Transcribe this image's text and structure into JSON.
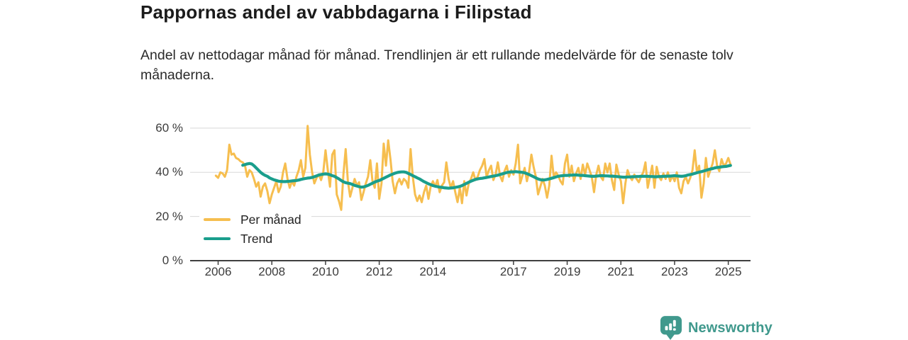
{
  "header": {
    "title": "Pappornas andel av vabbdagarna i Filipstad",
    "subtitle": "Andel av nettodagar månad för månad. Trendlinjen är ett rullande medelvärde för de senaste tolv månaderna."
  },
  "footer": {
    "brand": "Newsworthy",
    "brand_color": "#40998D"
  },
  "colors": {
    "per_month_line": "#F6BE4F",
    "trend_line": "#1A9E8C",
    "gridline": "#d8d8d8",
    "axis": "#3f3f3f",
    "text": "#2a2a2a"
  },
  "chart_data": {
    "type": "line",
    "title": "Pappornas andel av vabbdagarna i Filipstad",
    "subtitle": "Andel av nettodagar månad för månad. Trendlinjen är ett rullande medelvärde för de senaste tolv månaderna.",
    "xlabel": "",
    "ylabel": "",
    "unit": "%",
    "ylim": [
      0,
      65
    ],
    "y_tick_values": [
      0,
      20,
      40,
      60
    ],
    "y_tick_labels": [
      "0 %",
      "20 %",
      "40 %",
      "60 %"
    ],
    "x_ticks": [
      2006,
      2008,
      2010,
      2012,
      2014,
      2017,
      2019,
      2021,
      2023,
      2025
    ],
    "grid": "horizontal",
    "legend_position": "inside-bottom-left",
    "series": [
      {
        "name": "Per månad",
        "color": "#F6BE4F",
        "start": "2005-12",
        "freq": "monthly",
        "values": [
          38.5,
          37.5,
          40,
          39.5,
          38,
          41,
          52.5,
          48,
          48.5,
          46.5,
          46,
          45,
          44.5,
          43,
          38,
          41,
          40,
          37,
          33.5,
          35.5,
          29,
          33.5,
          35,
          31.5,
          26,
          30,
          33,
          36,
          31,
          33.5,
          40,
          44,
          37,
          33,
          36,
          34,
          38,
          41,
          45.5,
          38,
          42,
          61,
          48,
          40,
          35,
          37.5,
          39,
          36.5,
          40,
          50,
          41,
          33.5,
          48,
          50,
          30,
          27,
          23,
          39,
          50.5,
          36,
          29,
          33,
          37,
          34,
          35.5,
          27.5,
          31,
          35,
          38,
          45.5,
          36,
          33,
          44,
          28,
          35,
          53,
          43,
          54.5,
          46,
          36,
          30.5,
          35,
          37,
          34.5,
          37,
          36,
          33,
          50.5,
          38,
          30,
          27,
          29.5,
          26.5,
          31,
          34,
          28,
          33.5,
          36,
          33.5,
          36.5,
          31,
          34,
          35.5,
          44.5,
          37,
          33,
          36,
          31,
          26.5,
          33,
          26,
          36,
          29.5,
          35,
          37,
          40,
          36.5,
          38,
          41,
          43,
          46,
          38,
          41,
          43,
          36.5,
          39,
          44.5,
          38.5,
          36,
          40.5,
          43,
          38,
          41,
          39,
          44,
          52.5,
          35,
          38.5,
          42,
          36,
          40.5,
          48,
          42.5,
          38,
          30,
          33.5,
          37,
          34,
          28.5,
          34,
          47.5,
          38,
          40,
          38.5,
          36,
          34.5,
          44,
          48,
          38,
          43,
          36,
          39.5,
          42,
          37,
          43.5,
          39,
          44,
          41,
          38,
          31,
          39,
          43,
          38,
          36.5,
          44,
          40,
          44,
          36.5,
          32,
          43.5,
          39,
          36,
          26,
          35,
          41,
          38,
          36.5,
          39,
          37,
          35.5,
          38,
          40,
          44.5,
          33,
          38,
          43,
          33,
          42.5,
          38,
          36.5,
          39.5,
          37,
          40,
          36,
          38.5,
          36,
          40,
          33,
          30.5,
          36,
          38,
          35,
          37.5,
          41,
          50,
          40,
          43,
          28.5,
          35,
          46.5,
          38,
          41,
          44,
          50,
          43,
          40.5,
          46,
          43,
          44,
          46.5,
          43.5
        ]
      },
      {
        "name": "Trend",
        "color": "#1A9E8C",
        "start": "2006-12",
        "freq": "monthly",
        "values": [
          43.2,
          43.5,
          43.8,
          44.0,
          43.8,
          43.0,
          42.0,
          41.0,
          40.0,
          39.2,
          38.6,
          38.2,
          37.5,
          37.0,
          36.6,
          36.3,
          36.0,
          35.9,
          35.8,
          35.8,
          35.9,
          36.0,
          36.1,
          36.2,
          36.3,
          36.5,
          36.8,
          37.0,
          37.2,
          37.4,
          37.5,
          37.7,
          38.0,
          38.4,
          38.8,
          39.0,
          39.2,
          39.3,
          39.2,
          38.9,
          38.5,
          38.2,
          37.6,
          37.0,
          36.3,
          35.7,
          35.3,
          35.1,
          34.9,
          34.5,
          34.1,
          33.8,
          33.5,
          33.3,
          33.4,
          33.7,
          34.1,
          34.6,
          35.1,
          35.6,
          36.0,
          36.3,
          36.8,
          37.3,
          37.8,
          38.3,
          38.8,
          39.2,
          39.6,
          39.9,
          40.1,
          40.2,
          40.2,
          40.0,
          39.5,
          39.0,
          38.5,
          38.0,
          37.5,
          37.0,
          36.4,
          35.8,
          35.3,
          34.8,
          34.4,
          34.0,
          33.7,
          33.5,
          33.3,
          33.2,
          33.0,
          32.9,
          32.8,
          32.9,
          33.0,
          33.2,
          33.4,
          33.6,
          34.0,
          34.5,
          35.0,
          35.5,
          36.0,
          36.4,
          36.8,
          37.0,
          37.2,
          37.3,
          37.5,
          37.7,
          37.9,
          38.1,
          38.3,
          38.5,
          38.7,
          39.0,
          39.3,
          39.6,
          39.9,
          40.1,
          40.2,
          40.2,
          40.3,
          40.2,
          40.1,
          40.0,
          39.8,
          39.4,
          39.0,
          38.5,
          38.0,
          37.5,
          37.0,
          36.7,
          36.5,
          36.6,
          36.8,
          37.0,
          37.3,
          37.6,
          37.9,
          38.2,
          38.4,
          38.5,
          38.6,
          38.6,
          38.7,
          38.7,
          38.8,
          38.8,
          38.7,
          38.6,
          38.6,
          38.5,
          38.4,
          38.3,
          38.2,
          38.2,
          38.3,
          38.4,
          38.5,
          38.5,
          38.4,
          38.4,
          38.3,
          38.3,
          38.2,
          38.1,
          38.0,
          37.9,
          37.8,
          37.8,
          37.9,
          37.9,
          38.0,
          38.0,
          38.1,
          38.1,
          38.2,
          38.2,
          38.2,
          38.2,
          38.1,
          38.1,
          38.0,
          38.0,
          38.1,
          38.1,
          38.2,
          38.2,
          38.3,
          38.3,
          38.4,
          38.5,
          38.4,
          38.3,
          38.2,
          38.3,
          38.5,
          38.8,
          39.0,
          39.2,
          39.5,
          39.8,
          40.1,
          40.3,
          40.6,
          40.9,
          41.2,
          41.5,
          41.7,
          42.0,
          42.2,
          42.3,
          42.5,
          42.6,
          42.7,
          42.9,
          43.1
        ]
      }
    ]
  }
}
